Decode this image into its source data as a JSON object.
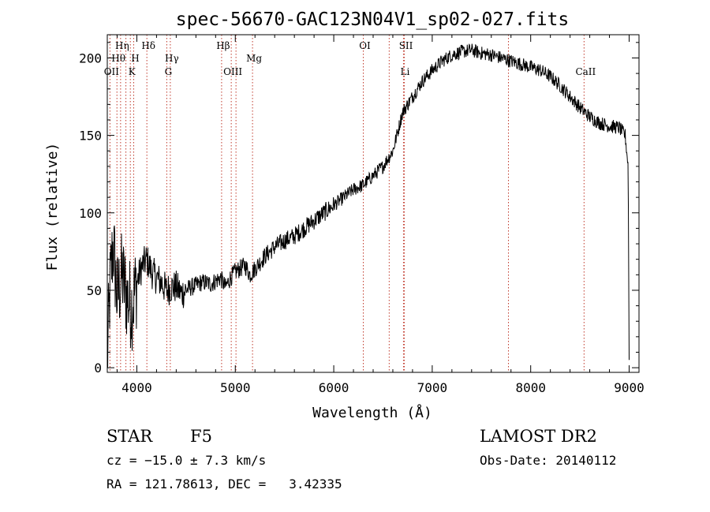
{
  "chart_data": {
    "type": "line",
    "title": "spec-56670-GAC123N04V1_sp02-027.fits",
    "xlabel": "Wavelength (Å)",
    "ylabel": "Flux (relative)",
    "xlim": [
      3700,
      9100
    ],
    "ylim": [
      -3,
      215
    ],
    "x_ticks": [
      4000,
      5000,
      6000,
      7000,
      8000,
      9000
    ],
    "y_ticks": [
      0,
      50,
      100,
      150,
      200
    ],
    "grid": false,
    "series": [
      {
        "points": [
          [
            3700,
            5
          ],
          [
            3730,
            55
          ],
          [
            3760,
            80
          ],
          [
            3800,
            45
          ],
          [
            3850,
            60
          ],
          [
            3900,
            45
          ],
          [
            3950,
            40
          ],
          [
            4000,
            55
          ],
          [
            4050,
            65
          ],
          [
            4100,
            70
          ],
          [
            4150,
            62
          ],
          [
            4200,
            58
          ],
          [
            4250,
            55
          ],
          [
            4300,
            50
          ],
          [
            4350,
            52
          ],
          [
            4400,
            52
          ],
          [
            4450,
            48
          ],
          [
            4500,
            50
          ],
          [
            4550,
            52
          ],
          [
            4600,
            53
          ],
          [
            4650,
            55
          ],
          [
            4700,
            55
          ],
          [
            4750,
            54
          ],
          [
            4800,
            56
          ],
          [
            4850,
            58
          ],
          [
            4900,
            52
          ],
          [
            4950,
            58
          ],
          [
            5000,
            62
          ],
          [
            5100,
            66
          ],
          [
            5150,
            60
          ],
          [
            5200,
            64
          ],
          [
            5300,
            72
          ],
          [
            5400,
            78
          ],
          [
            5500,
            82
          ],
          [
            5600,
            85
          ],
          [
            5700,
            90
          ],
          [
            5800,
            95
          ],
          [
            5900,
            100
          ],
          [
            6000,
            105
          ],
          [
            6100,
            110
          ],
          [
            6200,
            115
          ],
          [
            6300,
            118
          ],
          [
            6400,
            124
          ],
          [
            6500,
            130
          ],
          [
            6600,
            140
          ],
          [
            6700,
            165
          ],
          [
            6800,
            175
          ],
          [
            6900,
            185
          ],
          [
            7000,
            192
          ],
          [
            7100,
            198
          ],
          [
            7200,
            202
          ],
          [
            7300,
            204
          ],
          [
            7400,
            205
          ],
          [
            7500,
            203
          ],
          [
            7600,
            202
          ],
          [
            7700,
            200
          ],
          [
            7800,
            198
          ],
          [
            7900,
            196
          ],
          [
            8000,
            194
          ],
          [
            8100,
            192
          ],
          [
            8200,
            188
          ],
          [
            8300,
            182
          ],
          [
            8400,
            175
          ],
          [
            8500,
            168
          ],
          [
            8600,
            162
          ],
          [
            8700,
            158
          ],
          [
            8800,
            156
          ],
          [
            8900,
            155
          ],
          [
            8960,
            150
          ],
          [
            8990,
            130
          ],
          [
            9000,
            5
          ]
        ]
      }
    ],
    "lines_top": [
      {
        "label": "Hη",
        "x": 3835
      },
      {
        "label": "Hδ",
        "x": 4102
      },
      {
        "label": "Hβ",
        "x": 4861
      },
      {
        "label": "OI",
        "x": 6300
      },
      {
        "label": "SII",
        "x": 6717
      }
    ],
    "lines_mid": [
      {
        "label": "Hθ",
        "x": 3798
      },
      {
        "label": "H",
        "x": 3968
      },
      {
        "label": "Hγ",
        "x": 4340
      },
      {
        "label": "Mg",
        "x": 5175
      }
    ],
    "lines_low": [
      {
        "label": "OII",
        "x": 3727
      },
      {
        "label": "K",
        "x": 3934
      },
      {
        "label": "G",
        "x": 4304
      },
      {
        "label": "OIII",
        "x": 4959
      },
      {
        "label": "Li",
        "x": 6708
      },
      {
        "label": "CaII",
        "x": 8542
      }
    ],
    "extra_marker_x": [
      3889,
      5007,
      6563,
      7774
    ]
  },
  "info": {
    "object_class": "STAR",
    "subclass": "F5",
    "survey": "LAMOST DR2",
    "cz": "cz = −15.0 ± 7.3 km/s",
    "obs_date": "Obs-Date: 20140112",
    "coords": "RA = 121.78613, DEC =   3.42335"
  }
}
